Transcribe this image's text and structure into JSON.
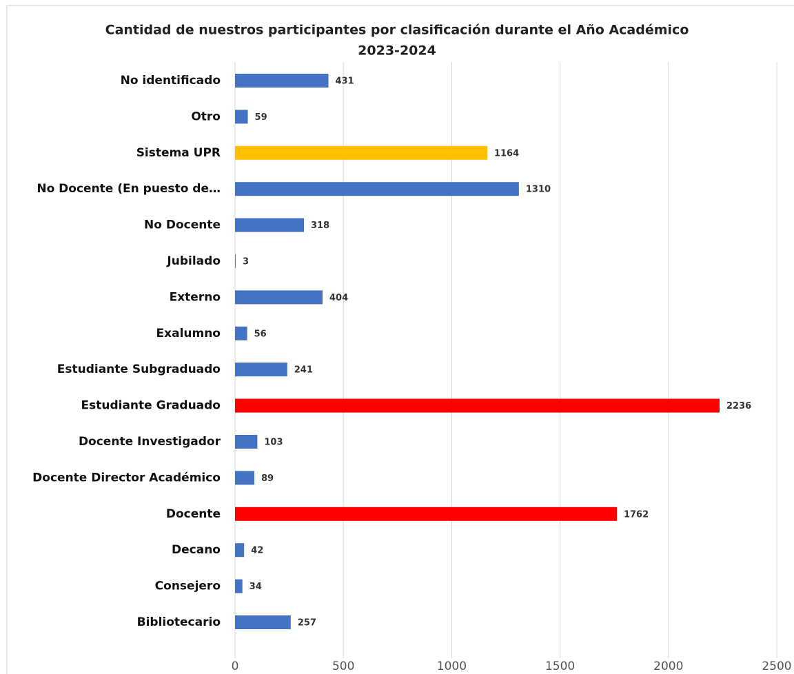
{
  "chart_data": {
    "type": "hbar",
    "title": [
      "Cantidad de nuestros participantes por clasificación durante el Año Académico",
      "2023-2024"
    ],
    "categories": [
      "No identificado",
      "Otro",
      "Sistema UPR",
      "No Docente (En puesto de…",
      "No Docente",
      "Jubilado",
      "Externo",
      "Exalumno",
      "Estudiante Subgraduado",
      "Estudiante Graduado",
      "Docente Investigador",
      "Docente Director Académico",
      "Docente",
      "Decano",
      "Consejero",
      "Bibliotecario"
    ],
    "values": [
      431,
      59,
      1164,
      1310,
      318,
      3,
      404,
      56,
      241,
      2236,
      103,
      89,
      1762,
      42,
      34,
      257
    ],
    "colors": [
      "#4472c4",
      "#4472c4",
      "#ffc000",
      "#4472c4",
      "#4472c4",
      "#4472c4",
      "#4472c4",
      "#4472c4",
      "#4472c4",
      "#ff0000",
      "#4472c4",
      "#4472c4",
      "#ff0000",
      "#4472c4",
      "#4472c4",
      "#4472c4"
    ],
    "xlim": [
      0,
      2500
    ],
    "xticks": [
      0,
      500,
      1000,
      1500,
      2000,
      2500
    ],
    "grid": true
  }
}
